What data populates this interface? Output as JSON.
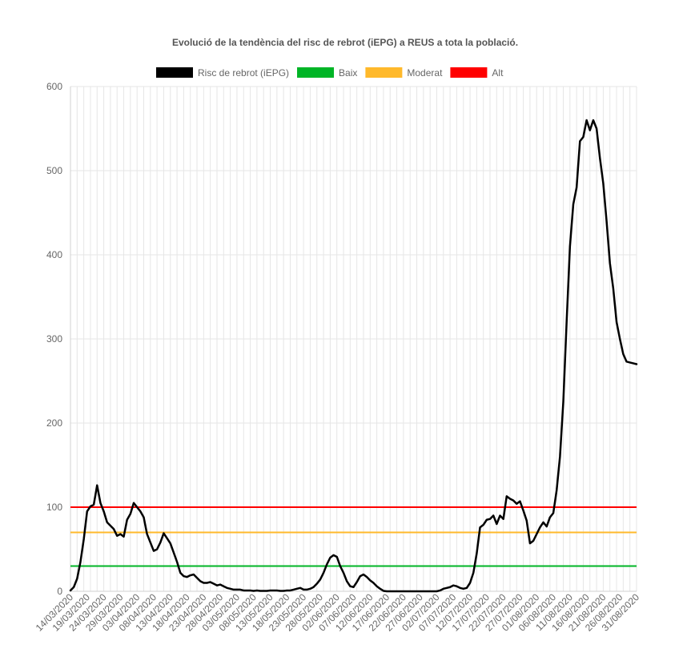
{
  "chart_data": {
    "type": "line",
    "title": "Evolució de la tendència del risc de rebrot (iEPG) a REUS a tota la població.",
    "xlabel": "",
    "ylabel": "",
    "ylim": [
      0,
      600
    ],
    "yticks": [
      0,
      100,
      200,
      300,
      400,
      500,
      600
    ],
    "grid": true,
    "legend_position": "top",
    "x_tick_labels": [
      "14/03/2020",
      "19/03/2020",
      "24/03/2020",
      "29/03/2020",
      "03/04/2020",
      "08/04/2020",
      "13/04/2020",
      "18/04/2020",
      "23/04/2020",
      "28/04/2020",
      "03/05/2020",
      "08/05/2020",
      "13/05/2020",
      "18/05/2020",
      "23/05/2020",
      "28/05/2020",
      "02/06/2020",
      "07/06/2020",
      "12/06/2020",
      "17/06/2020",
      "22/06/2020",
      "27/06/2020",
      "02/07/2020",
      "07/07/2020",
      "12/07/2020",
      "17/07/2020",
      "22/07/2020",
      "27/07/2020",
      "01/08/2020",
      "06/08/2020",
      "11/08/2020",
      "16/08/2020",
      "21/08/2020",
      "26/08/2020",
      "31/08/2020"
    ],
    "x_range": [
      "14/03/2020",
      "31/08/2020"
    ],
    "series": [
      {
        "name": "Risc de rebrot (iEPG)",
        "color": "#000000",
        "points": [
          [
            "14/03/2020",
            1
          ],
          [
            "15/03/2020",
            5
          ],
          [
            "16/03/2020",
            15
          ],
          [
            "17/03/2020",
            35
          ],
          [
            "18/03/2020",
            62
          ],
          [
            "19/03/2020",
            95
          ],
          [
            "20/03/2020",
            101
          ],
          [
            "21/03/2020",
            103
          ],
          [
            "22/03/2020",
            126
          ],
          [
            "23/03/2020",
            105
          ],
          [
            "24/03/2020",
            95
          ],
          [
            "25/03/2020",
            82
          ],
          [
            "26/03/2020",
            78
          ],
          [
            "27/03/2020",
            74
          ],
          [
            "28/03/2020",
            66
          ],
          [
            "29/03/2020",
            68
          ],
          [
            "30/03/2020",
            65
          ],
          [
            "31/03/2020",
            85
          ],
          [
            "01/04/2020",
            92
          ],
          [
            "02/04/2020",
            105
          ],
          [
            "03/04/2020",
            100
          ],
          [
            "04/04/2020",
            95
          ],
          [
            "05/04/2020",
            88
          ],
          [
            "06/04/2020",
            68
          ],
          [
            "07/04/2020",
            58
          ],
          [
            "08/04/2020",
            48
          ],
          [
            "09/04/2020",
            50
          ],
          [
            "10/04/2020",
            58
          ],
          [
            "11/04/2020",
            69
          ],
          [
            "12/04/2020",
            63
          ],
          [
            "13/04/2020",
            57
          ],
          [
            "14/04/2020",
            46
          ],
          [
            "15/04/2020",
            35
          ],
          [
            "16/04/2020",
            22
          ],
          [
            "17/04/2020",
            18
          ],
          [
            "18/04/2020",
            17
          ],
          [
            "19/04/2020",
            19
          ],
          [
            "20/04/2020",
            20
          ],
          [
            "21/04/2020",
            16
          ],
          [
            "22/04/2020",
            12
          ],
          [
            "23/04/2020",
            10
          ],
          [
            "24/04/2020",
            10
          ],
          [
            "25/04/2020",
            11
          ],
          [
            "26/04/2020",
            9
          ],
          [
            "27/04/2020",
            7
          ],
          [
            "28/04/2020",
            8
          ],
          [
            "29/04/2020",
            6
          ],
          [
            "30/04/2020",
            4
          ],
          [
            "01/05/2020",
            3
          ],
          [
            "02/05/2020",
            2
          ],
          [
            "03/05/2020",
            2
          ],
          [
            "04/05/2020",
            2
          ],
          [
            "05/05/2020",
            1
          ],
          [
            "06/05/2020",
            1
          ],
          [
            "07/05/2020",
            1
          ],
          [
            "08/05/2020",
            0.5
          ],
          [
            "09/05/2020",
            1
          ],
          [
            "10/05/2020",
            0.5
          ],
          [
            "11/05/2020",
            0.5
          ],
          [
            "12/05/2020",
            0.5
          ],
          [
            "13/05/2020",
            1
          ],
          [
            "14/05/2020",
            1
          ],
          [
            "15/05/2020",
            1
          ],
          [
            "16/05/2020",
            0.5
          ],
          [
            "17/05/2020",
            0.5
          ],
          [
            "18/05/2020",
            1
          ],
          [
            "19/05/2020",
            1
          ],
          [
            "20/05/2020",
            2
          ],
          [
            "21/05/2020",
            3
          ],
          [
            "22/05/2020",
            4
          ],
          [
            "23/05/2020",
            2
          ],
          [
            "24/05/2020",
            2
          ],
          [
            "25/05/2020",
            3
          ],
          [
            "26/05/2020",
            5
          ],
          [
            "27/05/2020",
            9
          ],
          [
            "28/05/2020",
            14
          ],
          [
            "29/05/2020",
            22
          ],
          [
            "30/05/2020",
            32
          ],
          [
            "31/05/2020",
            40
          ],
          [
            "01/06/2020",
            43
          ],
          [
            "02/06/2020",
            41
          ],
          [
            "03/06/2020",
            30
          ],
          [
            "04/06/2020",
            22
          ],
          [
            "05/06/2020",
            12
          ],
          [
            "06/06/2020",
            6
          ],
          [
            "07/06/2020",
            5
          ],
          [
            "08/06/2020",
            11
          ],
          [
            "09/06/2020",
            18
          ],
          [
            "10/06/2020",
            20
          ],
          [
            "11/06/2020",
            17
          ],
          [
            "12/06/2020",
            13
          ],
          [
            "13/06/2020",
            10
          ],
          [
            "14/06/2020",
            6
          ],
          [
            "15/06/2020",
            3
          ],
          [
            "16/06/2020",
            0.5
          ],
          [
            "17/06/2020",
            0
          ],
          [
            "18/06/2020",
            0
          ],
          [
            "19/06/2020",
            0
          ],
          [
            "20/06/2020",
            0
          ],
          [
            "21/06/2020",
            0
          ],
          [
            "22/06/2020",
            0
          ],
          [
            "23/06/2020",
            0
          ],
          [
            "24/06/2020",
            0
          ],
          [
            "25/06/2020",
            0
          ],
          [
            "26/06/2020",
            0
          ],
          [
            "27/06/2020",
            0
          ],
          [
            "28/06/2020",
            0
          ],
          [
            "29/06/2020",
            0
          ],
          [
            "30/06/2020",
            0
          ],
          [
            "01/07/2020",
            0
          ],
          [
            "02/07/2020",
            0
          ],
          [
            "03/07/2020",
            1
          ],
          [
            "04/07/2020",
            3
          ],
          [
            "05/07/2020",
            4
          ],
          [
            "06/07/2020",
            5
          ],
          [
            "07/07/2020",
            7
          ],
          [
            "08/07/2020",
            6
          ],
          [
            "09/07/2020",
            4
          ],
          [
            "10/07/2020",
            3
          ],
          [
            "11/07/2020",
            4
          ],
          [
            "12/07/2020",
            10
          ],
          [
            "13/07/2020",
            22
          ],
          [
            "14/07/2020",
            45
          ],
          [
            "15/07/2020",
            76
          ],
          [
            "16/07/2020",
            79
          ],
          [
            "17/07/2020",
            85
          ],
          [
            "18/07/2020",
            86
          ],
          [
            "19/07/2020",
            90
          ],
          [
            "20/07/2020",
            80
          ],
          [
            "21/07/2020",
            90
          ],
          [
            "22/07/2020",
            86
          ],
          [
            "23/07/2020",
            113
          ],
          [
            "24/07/2020",
            110
          ],
          [
            "25/07/2020",
            108
          ],
          [
            "26/07/2020",
            104
          ],
          [
            "27/07/2020",
            107
          ],
          [
            "28/07/2020",
            96
          ],
          [
            "29/07/2020",
            84
          ],
          [
            "30/07/2020",
            57
          ],
          [
            "31/07/2020",
            60
          ],
          [
            "01/08/2020",
            68
          ],
          [
            "02/08/2020",
            76
          ],
          [
            "03/08/2020",
            82
          ],
          [
            "04/08/2020",
            77
          ],
          [
            "05/08/2020",
            88
          ],
          [
            "06/08/2020",
            93
          ],
          [
            "07/08/2020",
            120
          ],
          [
            "08/08/2020",
            160
          ],
          [
            "09/08/2020",
            225
          ],
          [
            "10/08/2020",
            320
          ],
          [
            "11/08/2020",
            410
          ],
          [
            "12/08/2020",
            460
          ],
          [
            "13/08/2020",
            480
          ],
          [
            "14/08/2020",
            535
          ],
          [
            "15/08/2020",
            540
          ],
          [
            "16/08/2020",
            560
          ],
          [
            "17/08/2020",
            548
          ],
          [
            "18/08/2020",
            560
          ],
          [
            "19/08/2020",
            550
          ],
          [
            "20/08/2020",
            515
          ],
          [
            "21/08/2020",
            485
          ],
          [
            "22/08/2020",
            440
          ],
          [
            "23/08/2020",
            390
          ],
          [
            "24/08/2020",
            360
          ],
          [
            "25/08/2020",
            320
          ],
          [
            "26/08/2020",
            300
          ],
          [
            "27/08/2020",
            282
          ],
          [
            "28/08/2020",
            273
          ],
          [
            "29/08/2020",
            272
          ],
          [
            "30/08/2020",
            271
          ],
          [
            "31/08/2020",
            270
          ]
        ]
      },
      {
        "name": "Baix",
        "color": "#00b526",
        "constant": 30
      },
      {
        "name": "Moderat",
        "color": "#ffb92b",
        "constant": 70
      },
      {
        "name": "Alt",
        "color": "#ff0000",
        "constant": 100
      }
    ]
  }
}
